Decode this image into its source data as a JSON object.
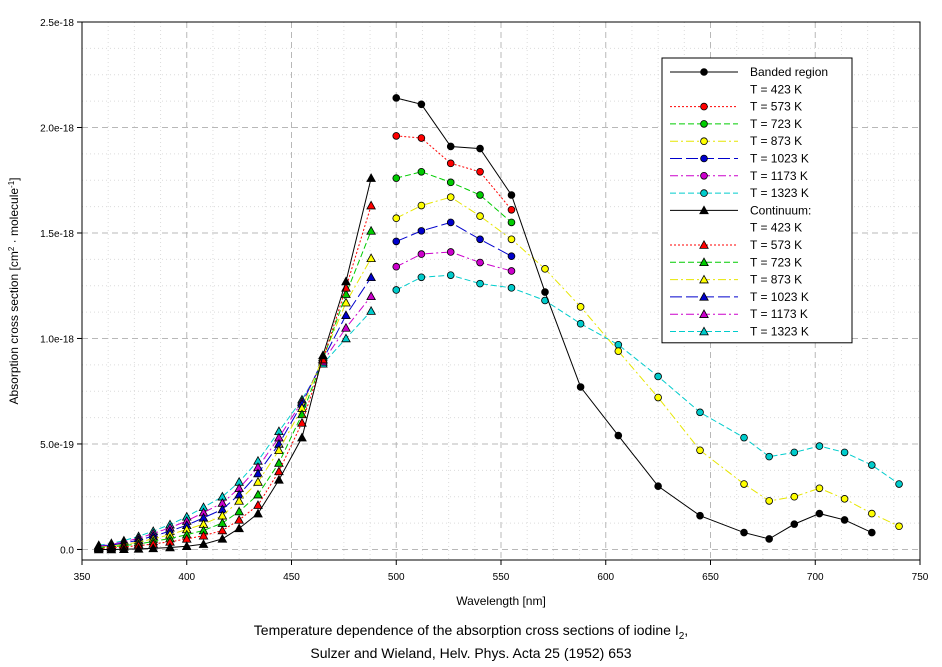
{
  "caption": {
    "line1": "Temperature dependence of the absorption cross sections of iodine I",
    "line1_sub": "2",
    "line1_end": ",",
    "line2": "Sulzer and Wieland, Helv. Phys. Acta 25 (1952) 653"
  },
  "chart_data": {
    "type": "line",
    "title": "Temperature dependence of the absorption cross sections of iodine I2",
    "xlabel": "Wavelength [nm]",
    "ylabel": "Absorption cross section [cm2 · molecule-1]",
    "ylabel_parts": {
      "a": "Absorption cross section [cm",
      "sup1": "2",
      "b": " · molecule",
      "sup2": "-1",
      "c": "]"
    },
    "xlim": [
      350,
      750
    ],
    "ylim": [
      -5e-20,
      2.5e-18
    ],
    "xticks": [
      350,
      400,
      450,
      500,
      550,
      600,
      650,
      700,
      750
    ],
    "yticks": [
      0,
      5e-19,
      1e-18,
      1.5e-18,
      2e-18,
      2.5e-18
    ],
    "ytick_labels": [
      "0.0",
      "5.0e-19",
      "1.0e-18",
      "1.5e-18",
      "2.0e-18",
      "2.5e-18"
    ],
    "grid": true,
    "legend_position": "top-right",
    "groups": [
      {
        "label": "Banded region",
        "marker": "circle"
      },
      {
        "label": "Continuum:",
        "marker": "triangle"
      }
    ],
    "series": [
      {
        "group": 0,
        "name": "T =  423 K",
        "color": "#000000",
        "dash": "solid",
        "marker": "circle",
        "x": [
          500,
          512,
          526,
          540,
          555,
          571,
          588,
          606,
          625,
          645,
          666,
          678,
          690,
          702,
          714,
          727
        ],
        "y": [
          2.14e-18,
          2.11e-18,
          1.91e-18,
          1.9e-18,
          1.68e-18,
          1.22e-18,
          7.7e-19,
          5.4e-19,
          3e-19,
          1.6e-19,
          8e-20,
          5e-20,
          1.2e-19,
          1.7e-19,
          1.4e-19,
          8e-20
        ]
      },
      {
        "group": 0,
        "name": "T =  573 K",
        "color": "#ff0000",
        "dash": "dot",
        "marker": "circle",
        "x": [
          500,
          512,
          526,
          540,
          555
        ],
        "y": [
          1.96e-18,
          1.95e-18,
          1.83e-18,
          1.79e-18,
          1.61e-18
        ]
      },
      {
        "group": 0,
        "name": "T =  723 K",
        "color": "#00cc00",
        "dash": "dash",
        "marker": "circle",
        "x": [
          500,
          512,
          526,
          540,
          555
        ],
        "y": [
          1.76e-18,
          1.79e-18,
          1.74e-18,
          1.68e-18,
          1.55e-18
        ]
      },
      {
        "group": 0,
        "name": "T =  873 K",
        "color": "#ffff00",
        "dash": "dashdot",
        "marker": "circle",
        "x": [
          500,
          512,
          526,
          540,
          555,
          571,
          588,
          606,
          625,
          645,
          666,
          678,
          690,
          702,
          714,
          727,
          740
        ],
        "y": [
          1.57e-18,
          1.63e-18,
          1.67e-18,
          1.58e-18,
          1.47e-18,
          1.33e-18,
          1.15e-18,
          9.4e-19,
          7.2e-19,
          4.7e-19,
          3.1e-19,
          2.3e-19,
          2.5e-19,
          2.9e-19,
          2.4e-19,
          1.7e-19,
          1.1e-19
        ]
      },
      {
        "group": 0,
        "name": "T = 1023 K",
        "color": "#0000cc",
        "dash": "longdash",
        "marker": "circle",
        "x": [
          500,
          512,
          526,
          540,
          555
        ],
        "y": [
          1.46e-18,
          1.51e-18,
          1.55e-18,
          1.47e-18,
          1.39e-18
        ]
      },
      {
        "group": 0,
        "name": "T = 1173 K",
        "color": "#cc00cc",
        "dash": "dashdot",
        "marker": "circle",
        "x": [
          500,
          512,
          526,
          540,
          555
        ],
        "y": [
          1.34e-18,
          1.4e-18,
          1.41e-18,
          1.36e-18,
          1.32e-18
        ]
      },
      {
        "group": 0,
        "name": "T = 1323 K",
        "color": "#00cccc",
        "dash": "dash",
        "marker": "circle",
        "x": [
          500,
          512,
          526,
          540,
          555,
          571,
          588,
          606,
          625,
          645,
          666,
          678,
          690,
          702,
          714,
          727,
          740
        ],
        "y": [
          1.23e-18,
          1.29e-18,
          1.3e-18,
          1.26e-18,
          1.24e-18,
          1.18e-18,
          1.07e-18,
          9.7e-19,
          8.2e-19,
          6.5e-19,
          5.3e-19,
          4.4e-19,
          4.6e-19,
          4.9e-19,
          4.6e-19,
          4e-19,
          3.1e-19
        ]
      },
      {
        "group": 1,
        "name": "T =  423 K",
        "color": "#000000",
        "dash": "solid",
        "marker": "triangle",
        "x": [
          358,
          364,
          370,
          377,
          384,
          392,
          400,
          408,
          417,
          425,
          434,
          444,
          455,
          465,
          476,
          488
        ],
        "y": [
          0,
          0,
          1e-21,
          3e-21,
          5e-21,
          9e-21,
          1.5e-20,
          2.5e-20,
          5e-20,
          1e-19,
          1.7e-19,
          3.3e-19,
          5.3e-19,
          9.2e-19,
          1.27e-18,
          1.76e-18
        ]
      },
      {
        "group": 1,
        "name": "T =  573 K",
        "color": "#ff0000",
        "dash": "dot",
        "marker": "triangle",
        "x": [
          358,
          364,
          370,
          377,
          384,
          392,
          400,
          408,
          417,
          425,
          434,
          444,
          455,
          465,
          476,
          488
        ],
        "y": [
          5e-21,
          8e-21,
          1.2e-20,
          1.8e-20,
          2.6e-20,
          3.6e-20,
          5e-20,
          6.5e-20,
          9e-20,
          1.4e-19,
          2.1e-19,
          3.7e-19,
          6e-19,
          9e-19,
          1.24e-18,
          1.63e-18
        ]
      },
      {
        "group": 1,
        "name": "T =  723 K",
        "color": "#00cc00",
        "dash": "dash",
        "marker": "triangle",
        "x": [
          358,
          364,
          370,
          377,
          384,
          392,
          400,
          408,
          417,
          425,
          434,
          444,
          455,
          465,
          476,
          488
        ],
        "y": [
          8e-21,
          1.2e-20,
          1.8e-20,
          2.6e-20,
          3.8e-20,
          5.2e-20,
          7e-20,
          9e-20,
          1.25e-19,
          1.8e-19,
          2.6e-19,
          4.1e-19,
          6.4e-19,
          9e-19,
          1.21e-18,
          1.51e-18
        ]
      },
      {
        "group": 1,
        "name": "T =  873 K",
        "color": "#ffff00",
        "dash": "dashdot",
        "marker": "triangle",
        "x": [
          358,
          364,
          370,
          377,
          384,
          392,
          400,
          408,
          417,
          425,
          434,
          444,
          455,
          465,
          476,
          488
        ],
        "y": [
          1e-20,
          1.6e-20,
          2.4e-20,
          3.5e-20,
          5e-20,
          7e-20,
          9.5e-20,
          1.2e-19,
          1.6e-19,
          2.3e-19,
          3.2e-19,
          4.7e-19,
          6.7e-19,
          9.1e-19,
          1.17e-18,
          1.38e-18
        ]
      },
      {
        "group": 1,
        "name": "T = 1023 K",
        "color": "#0000cc",
        "dash": "longdash",
        "marker": "triangle",
        "x": [
          358,
          364,
          370,
          377,
          384,
          392,
          400,
          408,
          417,
          425,
          434,
          444,
          455,
          465,
          476,
          488
        ],
        "y": [
          1.3e-20,
          2e-20,
          3e-20,
          4.4e-20,
          6.3e-20,
          8.7e-20,
          1.15e-19,
          1.5e-19,
          1.9e-19,
          2.6e-19,
          3.6e-19,
          5e-19,
          6.9e-19,
          9e-19,
          1.11e-18,
          1.29e-18
        ]
      },
      {
        "group": 1,
        "name": "T = 1173 K",
        "color": "#cc00cc",
        "dash": "dashdot",
        "marker": "triangle",
        "x": [
          358,
          364,
          370,
          377,
          384,
          392,
          400,
          408,
          417,
          425,
          434,
          444,
          455,
          465,
          476,
          488
        ],
        "y": [
          1.6e-20,
          2.4e-20,
          3.6e-20,
          5.3e-20,
          7.5e-20,
          1.03e-19,
          1.35e-19,
          1.75e-19,
          2.2e-19,
          2.9e-19,
          3.9e-19,
          5.3e-19,
          7e-19,
          8.9e-19,
          1.05e-18,
          1.2e-18
        ]
      },
      {
        "group": 1,
        "name": "T = 1323 K",
        "color": "#00cccc",
        "dash": "dash",
        "marker": "triangle",
        "x": [
          358,
          364,
          370,
          377,
          384,
          392,
          400,
          408,
          417,
          425,
          434,
          444,
          455,
          465,
          476,
          488
        ],
        "y": [
          2e-20,
          2.9e-20,
          4.2e-20,
          6.2e-20,
          8.7e-20,
          1.18e-19,
          1.55e-19,
          2e-19,
          2.5e-19,
          3.2e-19,
          4.2e-19,
          5.6e-19,
          7.1e-19,
          8.8e-19,
          1e-18,
          1.13e-18
        ]
      }
    ]
  }
}
